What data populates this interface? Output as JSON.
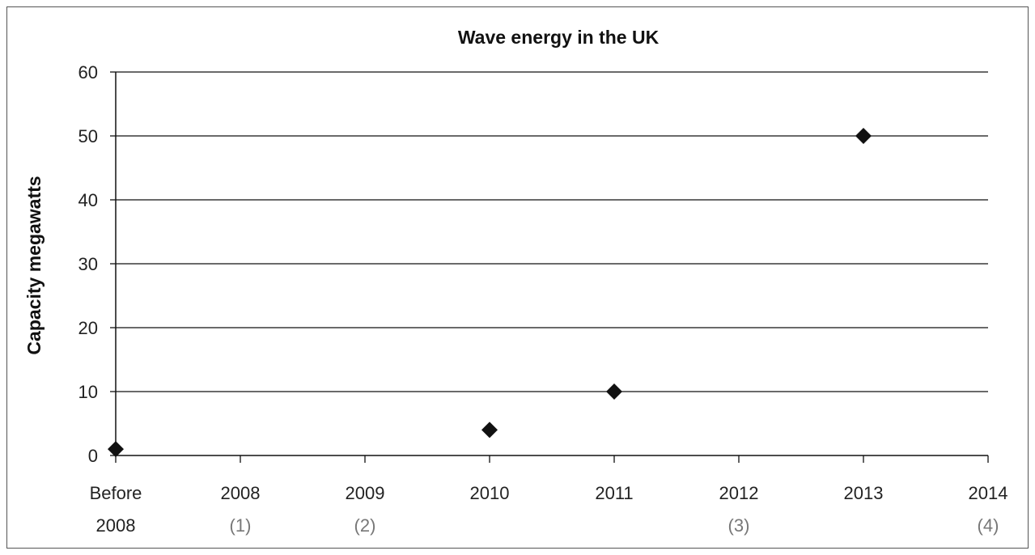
{
  "chart_data": {
    "type": "scatter",
    "title": "Wave energy in the UK",
    "xlabel": "",
    "ylabel": "Capacity megawatts",
    "ylim": [
      0,
      60
    ],
    "yticks": [
      0,
      10,
      20,
      30,
      40,
      50,
      60
    ],
    "grid": true,
    "categories": [
      {
        "line1": "Before",
        "line2": "2008"
      },
      {
        "line1": "2008",
        "line2": "(1)"
      },
      {
        "line1": "2009",
        "line2": "(2)"
      },
      {
        "line1": "2010",
        "line2": ""
      },
      {
        "line1": "2011",
        "line2": ""
      },
      {
        "line1": "2012",
        "line2": "(3)"
      },
      {
        "line1": "2013",
        "line2": ""
      },
      {
        "line1": "2014",
        "line2": "(4)"
      }
    ],
    "series": [
      {
        "marker": "diamond",
        "color": "#111111",
        "points": [
          {
            "x": "Before 2008",
            "y": 1
          },
          {
            "x": "2010",
            "y": 4
          },
          {
            "x": "2011",
            "y": 10
          },
          {
            "x": "2013",
            "y": 50
          }
        ]
      }
    ]
  }
}
